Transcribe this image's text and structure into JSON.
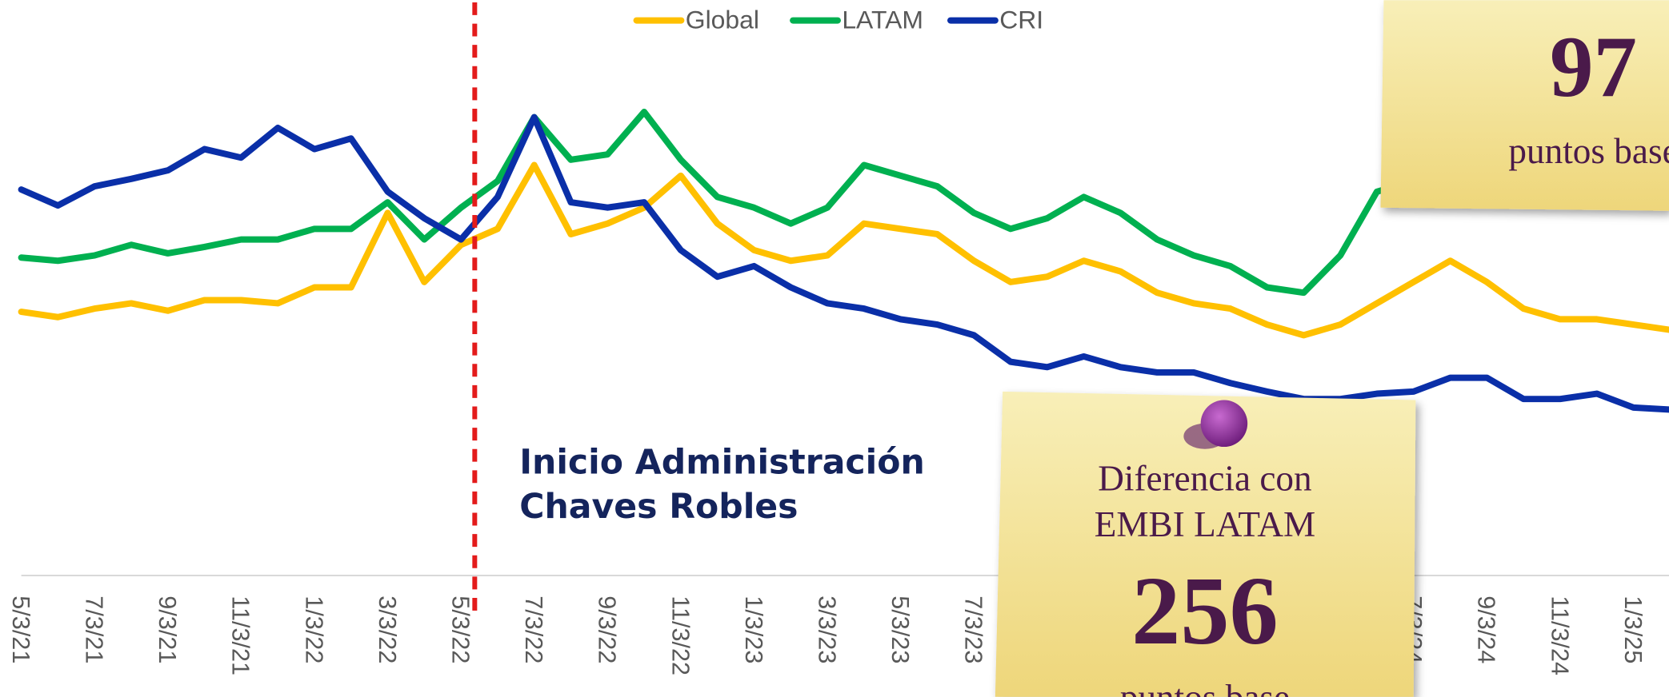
{
  "chart_data": {
    "type": "line",
    "categories": [
      "5/3/21",
      null,
      "7/3/21",
      null,
      "9/3/21",
      null,
      "11/3/21",
      null,
      "1/3/22",
      null,
      "3/3/22",
      null,
      "5/3/22",
      null,
      "7/3/22",
      null,
      "9/3/22",
      null,
      "11/3/22",
      null,
      "1/3/23",
      null,
      "3/3/23",
      null,
      "5/3/23",
      null,
      "7/3/23",
      null,
      null,
      null,
      null,
      null,
      null,
      null,
      null,
      null,
      null,
      null,
      "7/3/24",
      null,
      "9/3/24",
      null,
      "11/3/24",
      null,
      "1/3/25",
      null
    ],
    "series": [
      {
        "name": "Global",
        "color": "#ffc000",
        "values": [
          247,
          242,
          250,
          255,
          248,
          258,
          258,
          255,
          270,
          270,
          340,
          275,
          310,
          325,
          385,
          320,
          330,
          345,
          375,
          330,
          305,
          295,
          300,
          330,
          325,
          320,
          295,
          275,
          280,
          295,
          285,
          265,
          255,
          250,
          235,
          225,
          235,
          255,
          275,
          295,
          275,
          250,
          240,
          240,
          235,
          230
        ]
      },
      {
        "name": "LATAM",
        "color": "#00b050",
        "values": [
          298,
          295,
          300,
          310,
          302,
          308,
          315,
          315,
          325,
          325,
          350,
          315,
          345,
          370,
          430,
          390,
          395,
          435,
          390,
          355,
          345,
          330,
          345,
          385,
          375,
          365,
          340,
          325,
          335,
          355,
          340,
          315,
          300,
          290,
          270,
          265,
          300,
          360,
          370,
          380,
          375,
          365,
          360,
          355,
          350,
          345
        ]
      },
      {
        "name": "CRI",
        "color": "#0a2fa8",
        "values": [
          362,
          347,
          365,
          372,
          380,
          400,
          392,
          420,
          400,
          410,
          360,
          335,
          315,
          355,
          430,
          350,
          345,
          350,
          305,
          280,
          290,
          270,
          255,
          250,
          240,
          235,
          225,
          200,
          195,
          205,
          195,
          190,
          190,
          180,
          172,
          165,
          165,
          170,
          172,
          185,
          185,
          165,
          165,
          170,
          157,
          155
        ]
      }
    ],
    "ylim": [
      0,
      540
    ],
    "legend": "top",
    "annotation": [
      "Inicio Administración",
      "Chaves Robles"
    ],
    "notes": [
      {
        "value": "97",
        "unit": "puntos base"
      },
      {
        "lines": [
          "Diferencia con",
          "EMBI LATAM"
        ],
        "value": "256",
        "unit": "puntos base"
      }
    ]
  }
}
